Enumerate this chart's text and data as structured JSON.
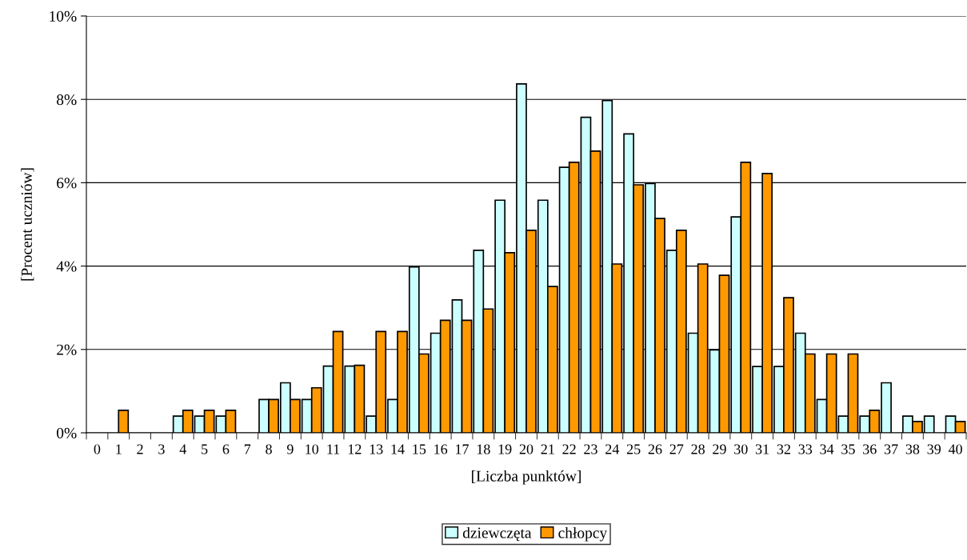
{
  "chart_data": {
    "type": "bar",
    "xlabel": "[Liczba punktów]",
    "ylabel": "[Procent uczniów]",
    "categories": [
      "0",
      "1",
      "2",
      "3",
      "4",
      "5",
      "6",
      "7",
      "8",
      "9",
      "10",
      "11",
      "12",
      "13",
      "14",
      "15",
      "16",
      "17",
      "18",
      "19",
      "20",
      "21",
      "22",
      "23",
      "24",
      "25",
      "26",
      "27",
      "28",
      "29",
      "30",
      "31",
      "32",
      "33",
      "34",
      "35",
      "36",
      "37",
      "38",
      "39",
      "40"
    ],
    "series": [
      {
        "name": "dziewczęta",
        "color": "#ccffff",
        "values": [
          0,
          0,
          0,
          0,
          0.4,
          0.4,
          0.4,
          0,
          0.8,
          1.2,
          0.8,
          1.6,
          1.6,
          0.4,
          0.8,
          3.98,
          2.39,
          3.19,
          4.38,
          5.58,
          8.37,
          5.58,
          6.37,
          7.57,
          7.97,
          7.17,
          5.98,
          4.38,
          2.39,
          1.99,
          5.18,
          1.59,
          1.59,
          2.39,
          0.8,
          0.4,
          0.4,
          1.2,
          0.4,
          0.4,
          0.4
        ]
      },
      {
        "name": "chłopcy",
        "color": "#ff9900",
        "values": [
          0,
          0.54,
          0,
          0,
          0.54,
          0.54,
          0.54,
          0,
          0.8,
          0.8,
          1.08,
          2.43,
          1.62,
          2.43,
          2.43,
          1.89,
          2.7,
          2.7,
          2.97,
          4.32,
          4.86,
          3.51,
          6.49,
          6.76,
          4.05,
          5.95,
          5.14,
          4.86,
          4.05,
          3.78,
          6.49,
          6.22,
          3.24,
          1.89,
          1.89,
          1.89,
          0.54,
          0,
          0.27,
          0,
          0.27
        ]
      }
    ],
    "ylim": [
      0,
      10
    ],
    "yticks": [
      {
        "value": 0,
        "label": "0%"
      },
      {
        "value": 2,
        "label": "2%"
      },
      {
        "value": 4,
        "label": "4%"
      },
      {
        "value": 6,
        "label": "6%"
      },
      {
        "value": 8,
        "label": "8%"
      },
      {
        "value": 10,
        "label": "10%"
      }
    ],
    "grid": "y",
    "legend": "bottom"
  }
}
